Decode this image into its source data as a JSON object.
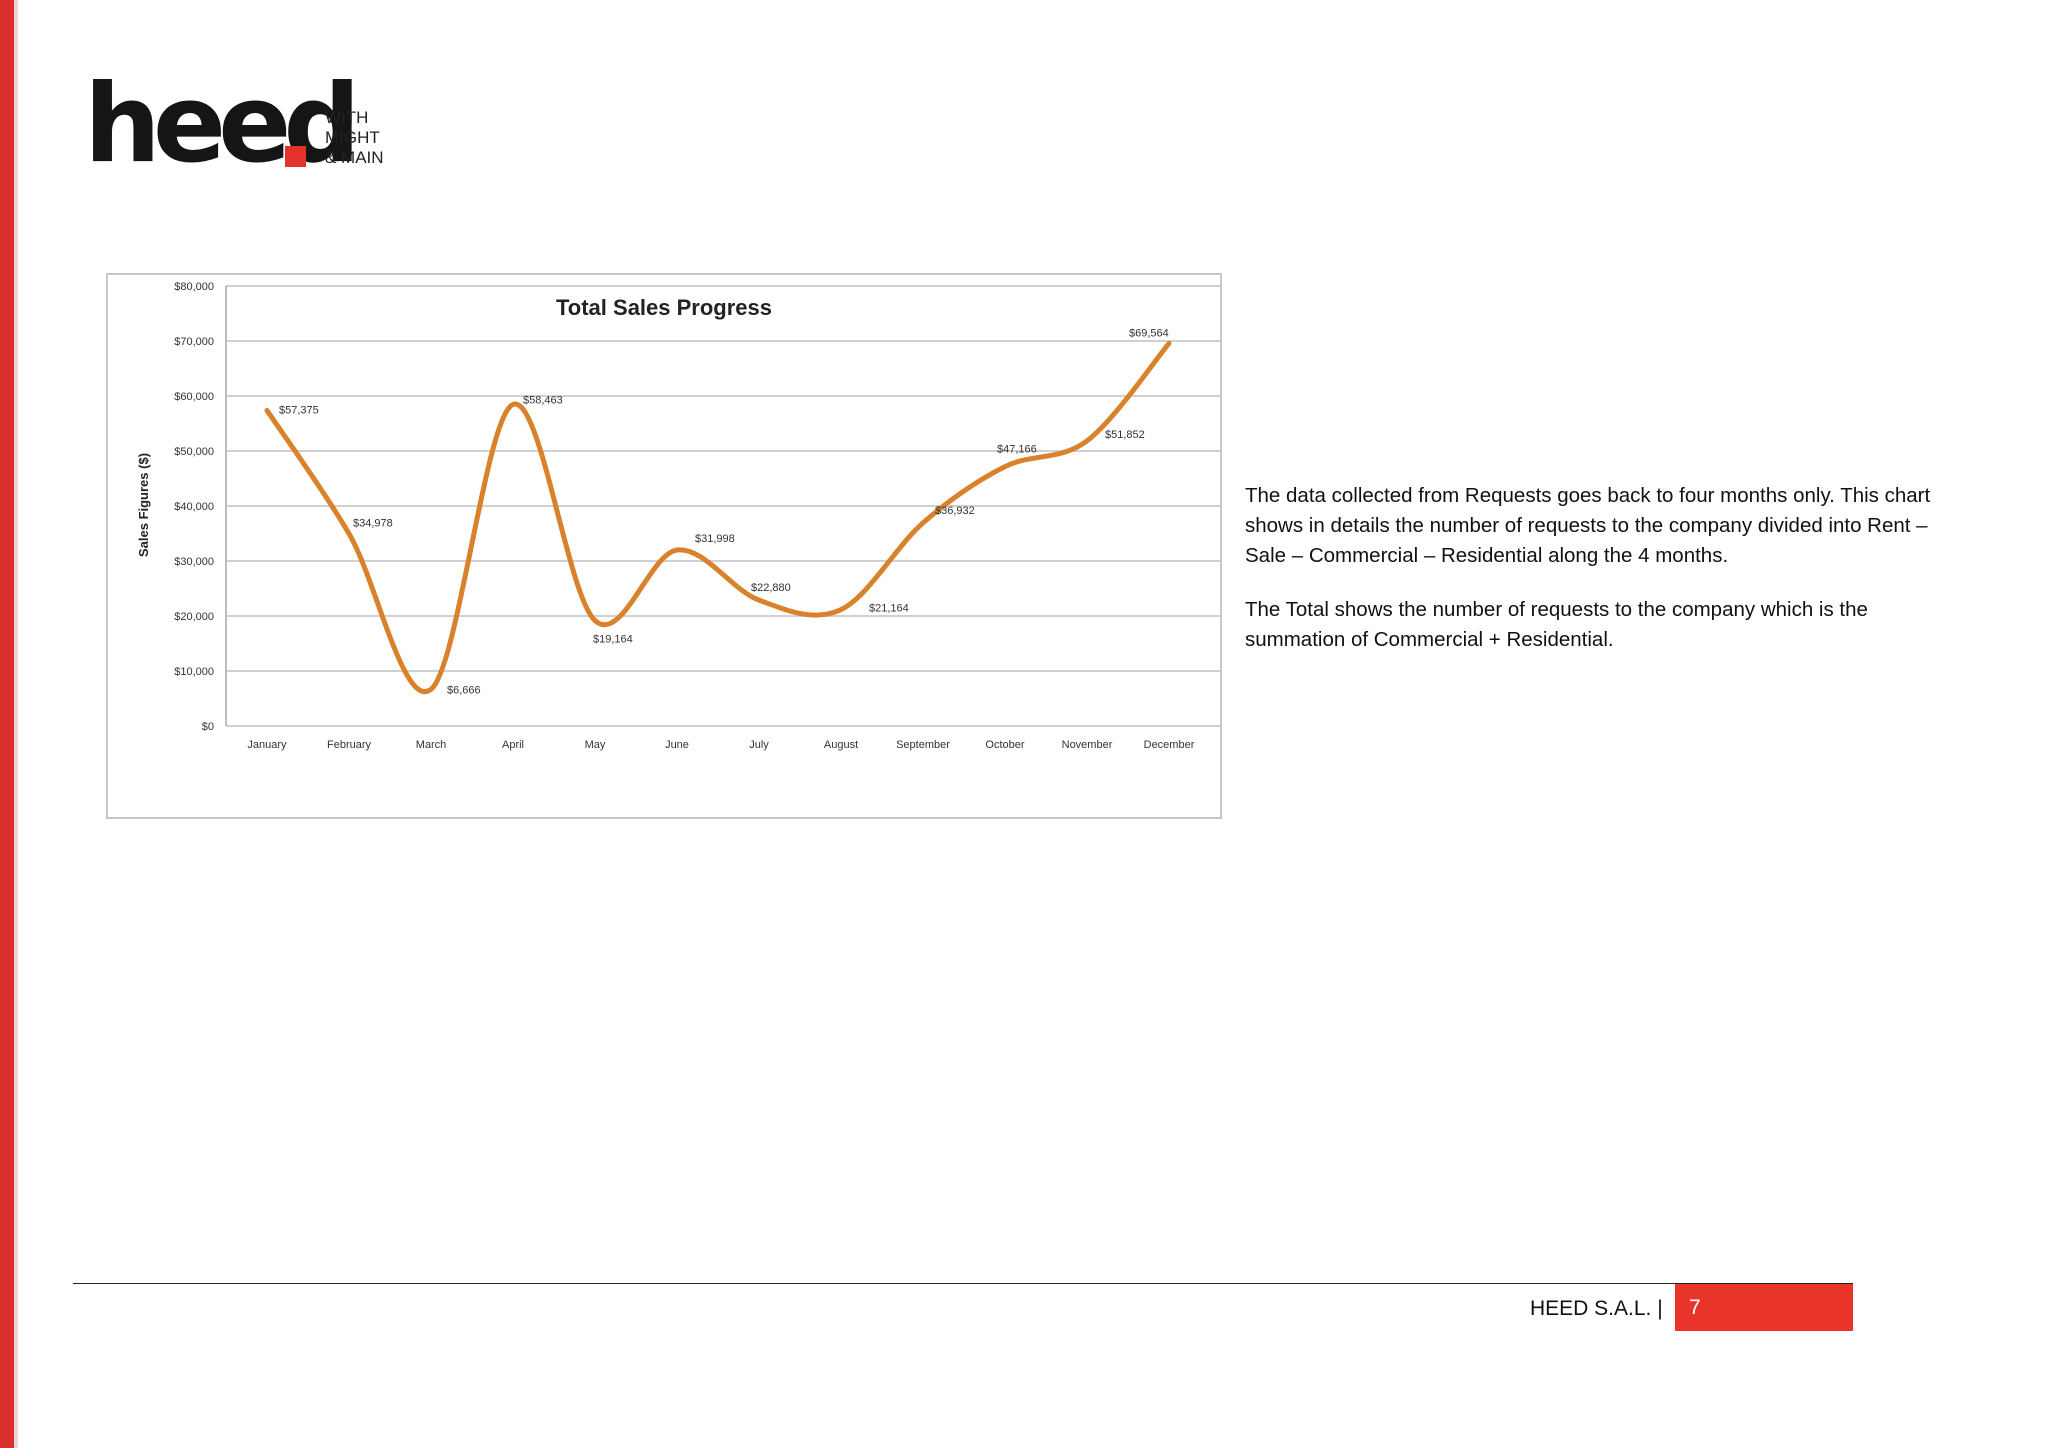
{
  "logo": {
    "word": "heed",
    "tagline": [
      "WITH",
      "MIGHT",
      "& MAIN"
    ]
  },
  "chart_data": {
    "type": "line",
    "title": "Total Sales Progress",
    "xlabel": "",
    "ylabel": "Sales Figures ($)",
    "categories": [
      "January",
      "February",
      "March",
      "April",
      "May",
      "June",
      "July",
      "August",
      "September",
      "October",
      "November",
      "December"
    ],
    "values": [
      57375,
      34978,
      6666,
      58463,
      19164,
      31998,
      22880,
      21164,
      36932,
      47166,
      51852,
      69564
    ],
    "data_labels": [
      "$57,375",
      "$34,978",
      "$6,666",
      "$58,463",
      "$19,164",
      "$31,998",
      "$22,880",
      "$21,164",
      "$36,932",
      "$47,166",
      "$51,852",
      "$69,564"
    ],
    "yticks": [
      "$0",
      "$10,000",
      "$20,000",
      "$30,000",
      "$40,000",
      "$50,000",
      "$60,000",
      "$70,000",
      "$80,000"
    ],
    "ylim": [
      0,
      80000
    ],
    "grid": true,
    "colors": {
      "line": "#d9812b",
      "grid": "#d0d0d0"
    }
  },
  "text": {
    "p1": "The data collected from Requests goes back to four months only. This chart shows in details the number of requests to the company divided into Rent – Sale – Commercial – Residential along the 4 months.",
    "p2": "The Total shows the number of requests to the company which is the summation of Commercial + Residential."
  },
  "footer": {
    "company": "HEED S.A.L. |",
    "page": "7"
  },
  "colors": {
    "accent": "#e8342b"
  }
}
